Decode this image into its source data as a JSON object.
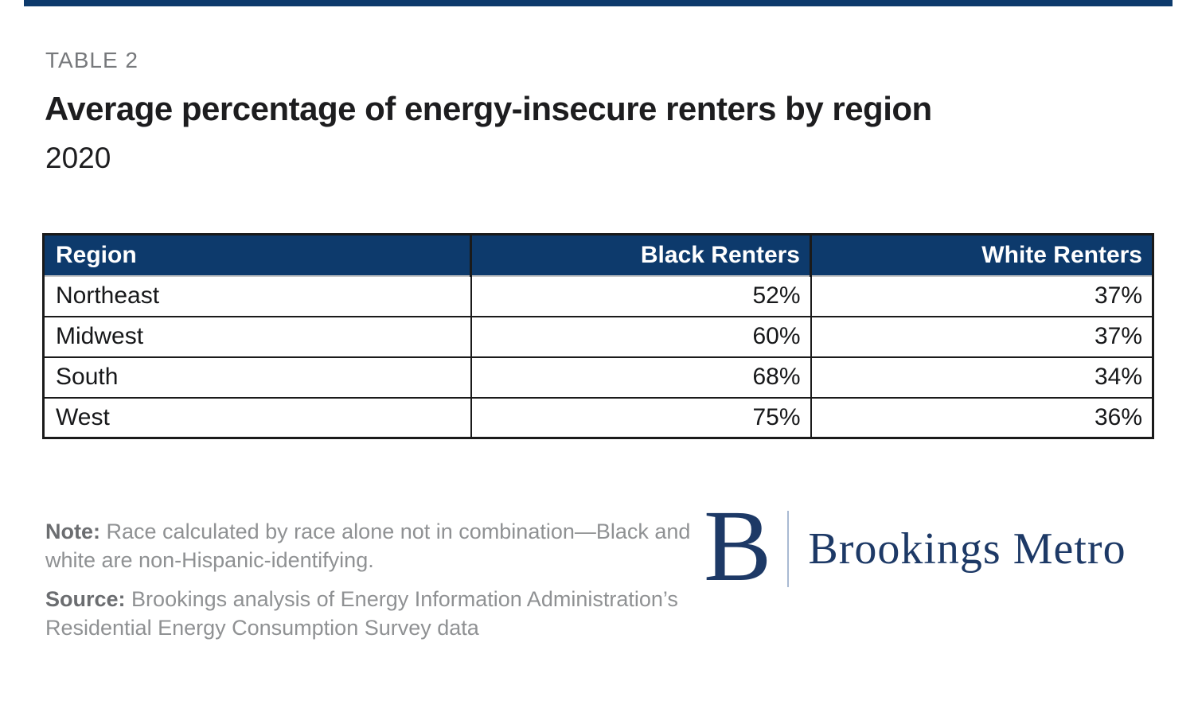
{
  "page": {
    "eyebrow": "TABLE 2",
    "title": "Average percentage of energy-insecure renters by region",
    "subtitle": "2020"
  },
  "table": {
    "columns": [
      "Region",
      "Black Renters",
      "White Renters"
    ],
    "rows": [
      {
        "region": "Northeast",
        "black": "52%",
        "white": "37%"
      },
      {
        "region": "Midwest",
        "black": "60%",
        "white": "37%"
      },
      {
        "region": "South",
        "black": "68%",
        "white": "34%"
      },
      {
        "region": "West",
        "black": "75%",
        "white": "36%"
      }
    ]
  },
  "notes": {
    "note_label": "Note:",
    "note_text": "Race calculated by race alone not in combination—Black and white are non-Hispanic-identifying.",
    "source_label": "Source:",
    "source_text": "Brookings analysis of Energy Information Administration’s Residential Energy Consumption Survey data"
  },
  "logo": {
    "mark": "B",
    "name": "Brookings Metro"
  },
  "colors": {
    "navy": "#0d3a6c",
    "logo_navy": "#1d3966",
    "grid_black": "#1a1a1a",
    "gray_text": "#8f9193"
  },
  "chart_data": {
    "type": "table",
    "title": "Average percentage of energy-insecure renters by region",
    "subtitle": "2020",
    "categories": [
      "Northeast",
      "Midwest",
      "South",
      "West"
    ],
    "series": [
      {
        "name": "Black Renters",
        "values": [
          52,
          60,
          68,
          75
        ]
      },
      {
        "name": "White Renters",
        "values": [
          37,
          37,
          34,
          36
        ]
      }
    ],
    "unit": "%",
    "layout": {
      "header_background": "#0d3a6c",
      "grid": "on"
    }
  }
}
